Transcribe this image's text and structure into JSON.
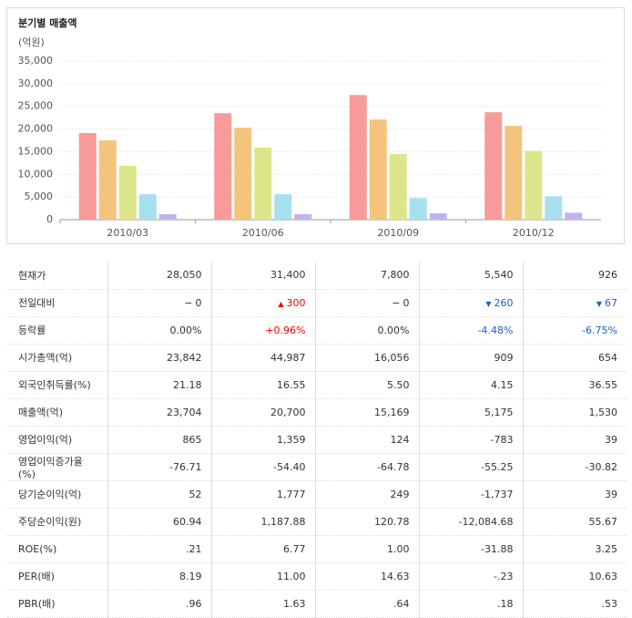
{
  "panel_title": "분기별 매출액",
  "chart_data": {
    "type": "bar",
    "y_label": "(억원)",
    "categories": [
      "2010/03",
      "2010/06",
      "2010/09",
      "2010/12"
    ],
    "series": [
      {
        "color": "#f89a9a",
        "values": [
          19100,
          23500,
          27500,
          23704
        ]
      },
      {
        "color": "#f4c47c",
        "values": [
          17500,
          20300,
          22100,
          20700
        ]
      },
      {
        "color": "#dde58a",
        "values": [
          11900,
          15900,
          14500,
          15169
        ]
      },
      {
        "color": "#a6e0ec",
        "values": [
          5600,
          5600,
          4800,
          5175
        ]
      },
      {
        "color": "#c3b3ec",
        "values": [
          1200,
          1200,
          1400,
          1530
        ]
      }
    ],
    "ylim": [
      0,
      35000
    ],
    "yticks": [
      0,
      {
        "value": 5000,
        "label": "5,000"
      },
      {
        "value": 10000,
        "label": "10,000"
      },
      {
        "value": 15000,
        "label": "15,000"
      },
      {
        "value": 20000,
        "label": "20,000"
      },
      {
        "value": 25000,
        "label": "25,000"
      },
      {
        "value": 30000,
        "label": "30,000"
      },
      {
        "value": 35000,
        "label": "35,000"
      }
    ],
    "grid": true
  },
  "table": {
    "change_styles": [
      "flat",
      "up",
      "flat",
      "down",
      "down"
    ],
    "rows": [
      [
        "현재가",
        "28,050",
        "31,400",
        "7,800",
        "5,540",
        "926"
      ],
      [
        "전일대비",
        "0",
        "300",
        "0",
        "260",
        "67"
      ],
      [
        "등락률",
        "0.00%",
        "+0.96%",
        "0.00%",
        "-4.48%",
        "-6.75%"
      ],
      [
        "시가총액(억)",
        "23,842",
        "44,987",
        "16,056",
        "909",
        "654"
      ],
      [
        "외국인취득률(%)",
        "21.18",
        "16.55",
        "5.50",
        "4.15",
        "36.55"
      ],
      [
        "매출액(억)",
        "23,704",
        "20,700",
        "15,169",
        "5,175",
        "1,530"
      ],
      [
        "영업이익(억)",
        "865",
        "1,359",
        "124",
        "-783",
        "39"
      ],
      [
        "영업이익증가율(%)",
        "-76.71",
        "-54.40",
        "-64.78",
        "-55.25",
        "-30.82"
      ],
      [
        "당기순이익(억)",
        "52",
        "1,777",
        "249",
        "-1,737",
        "39"
      ],
      [
        "주당순이익(원)",
        "60.94",
        "1,187.88",
        "120.78",
        "-12,084.68",
        "55.67"
      ],
      [
        "ROE(%)",
        ".21",
        "6.77",
        "1.00",
        "-31.88",
        "3.25"
      ],
      [
        "PER(배)",
        "8.19",
        "11.00",
        "14.63",
        "-.23",
        "10.63"
      ],
      [
        "PBR(배)",
        ".96",
        "1.63",
        ".64",
        ".18",
        ".53"
      ]
    ]
  }
}
